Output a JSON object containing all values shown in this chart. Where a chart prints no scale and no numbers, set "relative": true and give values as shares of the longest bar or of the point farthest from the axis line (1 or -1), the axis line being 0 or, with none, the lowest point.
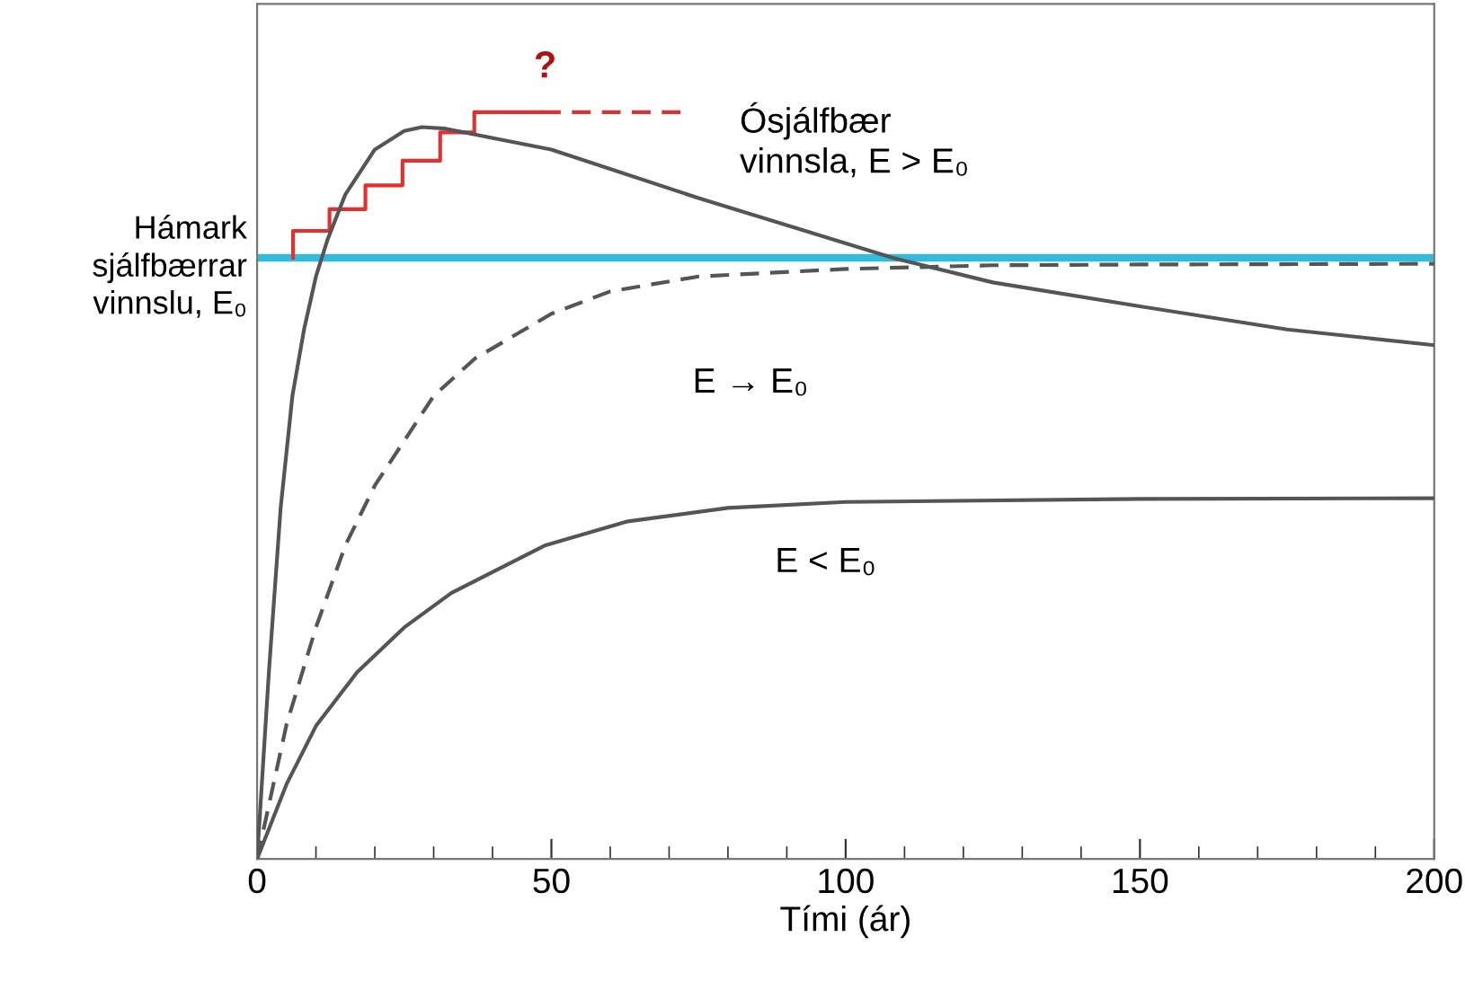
{
  "chart_data": {
    "type": "line",
    "relative": true,
    "xlabel": "Tími (ár)",
    "xlim": [
      0,
      200
    ],
    "xticks": [
      0,
      50,
      100,
      150,
      200
    ],
    "grid": false,
    "series": [
      {
        "color": "#555555",
        "line_style": "solid",
        "x": [
          0,
          2,
          4,
          6,
          8,
          10,
          12,
          15,
          20,
          25,
          28,
          32,
          37,
          50,
          75,
          108,
          125,
          150,
          175,
          200
        ],
        "values": [
          0,
          0.25,
          0.47,
          0.62,
          0.71,
          0.78,
          0.83,
          0.89,
          0.95,
          0.975,
          0.98,
          0.978,
          0.97,
          0.95,
          0.885,
          0.805,
          0.772,
          0.74,
          0.709,
          0.688
        ]
      },
      {
        "color": "#555555",
        "line_style": "dashed",
        "x": [
          0,
          5,
          10,
          15,
          20,
          30,
          37,
          50,
          60,
          75,
          100,
          125,
          150,
          200
        ],
        "values": [
          0,
          0.18,
          0.31,
          0.42,
          0.5,
          0.62,
          0.67,
          0.73,
          0.76,
          0.78,
          0.79,
          0.795,
          0.796,
          0.797
        ]
      },
      {
        "color": "#555555",
        "line_style": "solid",
        "x": [
          0,
          5,
          10,
          17,
          25,
          33,
          49,
          63,
          80,
          100,
          150,
          200
        ],
        "values": [
          0,
          0.1,
          0.178,
          0.25,
          0.31,
          0.356,
          0.42,
          0.452,
          0.47,
          0.478,
          0.482,
          0.483
        ]
      },
      {
        "type": "step",
        "color": "#e03030",
        "line_style": "solid",
        "x": [
          6.1,
          6.1,
          12.3,
          18.4,
          24.7,
          31.1,
          36.9,
          48.4
        ],
        "values": [
          0.805,
          0.841,
          0.87,
          0.902,
          0.935,
          0.973,
          1.0,
          1.0
        ]
      },
      {
        "color": "#e03030",
        "line_style": "dashed",
        "x": [
          48.4,
          72.4
        ],
        "values": [
          1.0,
          1.0
        ]
      }
    ],
    "ref_lines": [
      {
        "axis": "y",
        "value": 0.805,
        "label": "Hámark\nsjálfbærrar\nvinnslu, E₀",
        "color": "#33bbdd",
        "line_style": "solid"
      }
    ],
    "annotations": [
      "?",
      "Ósjálfbær\nvinnsla, E > E₀",
      "E → E₀",
      "E < E₀"
    ]
  }
}
